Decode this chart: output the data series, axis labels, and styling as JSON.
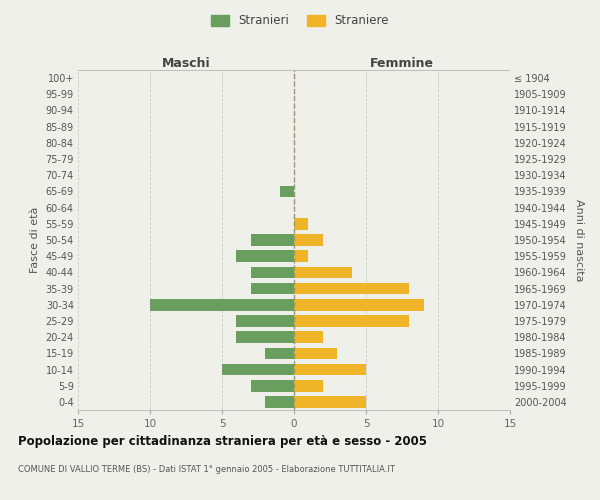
{
  "age_groups": [
    "100+",
    "95-99",
    "90-94",
    "85-89",
    "80-84",
    "75-79",
    "70-74",
    "65-69",
    "60-64",
    "55-59",
    "50-54",
    "45-49",
    "40-44",
    "35-39",
    "30-34",
    "25-29",
    "20-24",
    "15-19",
    "10-14",
    "5-9",
    "0-4"
  ],
  "birth_years": [
    "≤ 1904",
    "1905-1909",
    "1910-1914",
    "1915-1919",
    "1920-1924",
    "1925-1929",
    "1930-1934",
    "1935-1939",
    "1940-1944",
    "1945-1949",
    "1950-1954",
    "1955-1959",
    "1960-1964",
    "1965-1969",
    "1970-1974",
    "1975-1979",
    "1980-1984",
    "1985-1989",
    "1990-1994",
    "1995-1999",
    "2000-2004"
  ],
  "males": [
    0,
    0,
    0,
    0,
    0,
    0,
    0,
    1,
    0,
    0,
    3,
    4,
    3,
    3,
    10,
    4,
    4,
    2,
    5,
    3,
    2
  ],
  "females": [
    0,
    0,
    0,
    0,
    0,
    0,
    0,
    0,
    0,
    1,
    2,
    1,
    4,
    8,
    9,
    8,
    2,
    3,
    5,
    2,
    5
  ],
  "male_color": "#6a9e5e",
  "female_color": "#f0b429",
  "background_color": "#f0f0eb",
  "grid_color": "#cccccc",
  "title": "Popolazione per cittadinanza straniera per età e sesso - 2005",
  "subtitle": "COMUNE DI VALLIO TERME (BS) - Dati ISTAT 1° gennaio 2005 - Elaborazione TUTTITALIA.IT",
  "legend_male": "Stranieri",
  "legend_female": "Straniere",
  "xlabel_left": "Maschi",
  "xlabel_right": "Femmine",
  "ylabel_left": "Fasce di età",
  "ylabel_right": "Anni di nascita",
  "xlim": 15
}
